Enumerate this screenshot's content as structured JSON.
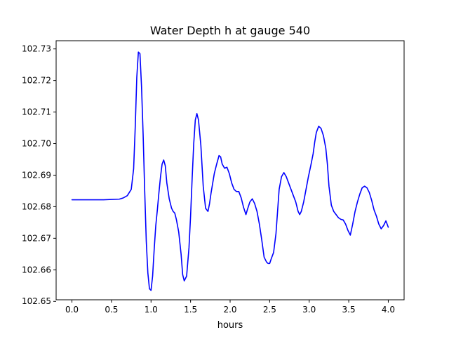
{
  "chart_data": {
    "type": "line",
    "title": "Water Depth h at gauge 540",
    "xlabel": "hours",
    "ylabel": "",
    "xlim": [
      -0.2,
      4.2
    ],
    "ylim": [
      102.6505,
      102.7326
    ],
    "grid": false,
    "x_ticks": [
      0.0,
      0.5,
      1.0,
      1.5,
      2.0,
      2.5,
      3.0,
      3.5,
      4.0
    ],
    "x_tick_labels": [
      "0.0",
      "0.5",
      "1.0",
      "1.5",
      "2.0",
      "2.5",
      "3.0",
      "3.5",
      "4.0"
    ],
    "y_ticks": [
      102.65,
      102.66,
      102.67,
      102.68,
      102.69,
      102.7,
      102.71,
      102.72,
      102.73
    ],
    "y_tick_labels": [
      "102.65",
      "102.66",
      "102.67",
      "102.68",
      "102.69",
      "102.70",
      "102.71",
      "102.72",
      "102.73"
    ],
    "series": [
      {
        "color": "#0000ff",
        "x": [
          0.0,
          0.1,
          0.2,
          0.3,
          0.4,
          0.5,
          0.6,
          0.65,
          0.7,
          0.75,
          0.78,
          0.8,
          0.82,
          0.84,
          0.86,
          0.88,
          0.9,
          0.92,
          0.94,
          0.96,
          0.98,
          1.0,
          1.02,
          1.04,
          1.06,
          1.08,
          1.1,
          1.12,
          1.14,
          1.16,
          1.18,
          1.2,
          1.23,
          1.26,
          1.28,
          1.3,
          1.32,
          1.35,
          1.38,
          1.4,
          1.42,
          1.45,
          1.48,
          1.5,
          1.52,
          1.54,
          1.56,
          1.58,
          1.6,
          1.63,
          1.66,
          1.69,
          1.72,
          1.74,
          1.76,
          1.78,
          1.8,
          1.83,
          1.86,
          1.88,
          1.9,
          1.93,
          1.96,
          1.99,
          2.02,
          2.05,
          2.08,
          2.11,
          2.14,
          2.17,
          2.2,
          2.22,
          2.25,
          2.28,
          2.31,
          2.34,
          2.37,
          2.4,
          2.43,
          2.46,
          2.48,
          2.5,
          2.52,
          2.55,
          2.58,
          2.6,
          2.62,
          2.65,
          2.68,
          2.71,
          2.74,
          2.77,
          2.8,
          2.83,
          2.86,
          2.88,
          2.9,
          2.93,
          2.96,
          2.99,
          3.02,
          3.05,
          3.07,
          3.09,
          3.12,
          3.15,
          3.18,
          3.21,
          3.23,
          3.25,
          3.28,
          3.31,
          3.34,
          3.37,
          3.4,
          3.43,
          3.46,
          3.49,
          3.52,
          3.55,
          3.58,
          3.61,
          3.64,
          3.67,
          3.7,
          3.73,
          3.76,
          3.79,
          3.82,
          3.85,
          3.88,
          3.91,
          3.94,
          3.97,
          4.0
        ],
        "y": [
          102.6822,
          102.6822,
          102.6822,
          102.6822,
          102.6822,
          102.6823,
          102.6824,
          102.6828,
          102.6835,
          102.6855,
          102.692,
          102.705,
          102.721,
          102.729,
          102.7285,
          102.718,
          102.703,
          102.685,
          102.669,
          102.659,
          102.654,
          102.6535,
          102.658,
          102.6665,
          102.674,
          102.679,
          102.6845,
          102.6895,
          102.6935,
          102.6948,
          102.693,
          102.6875,
          102.6825,
          102.6795,
          102.6785,
          102.678,
          102.676,
          102.672,
          102.665,
          102.6585,
          102.6565,
          102.658,
          102.667,
          102.677,
          102.689,
          102.7,
          102.7075,
          102.7095,
          102.7075,
          102.6995,
          102.6865,
          102.6795,
          102.6785,
          102.681,
          102.6845,
          102.6875,
          102.6905,
          102.6935,
          102.6962,
          102.6958,
          102.6935,
          102.6922,
          102.6925,
          102.6905,
          102.6875,
          102.6855,
          102.6848,
          102.6848,
          102.6828,
          102.6798,
          102.6775,
          102.6792,
          102.6815,
          102.6825,
          102.681,
          102.6785,
          102.6745,
          102.6695,
          102.664,
          102.6625,
          102.662,
          102.662,
          102.6635,
          102.6655,
          102.6715,
          102.6785,
          102.6855,
          102.6895,
          102.6908,
          102.6895,
          102.6875,
          102.6855,
          102.6835,
          102.6815,
          102.6785,
          102.6775,
          102.6785,
          102.6815,
          102.6855,
          102.6895,
          102.693,
          102.6968,
          102.7005,
          102.7035,
          102.7055,
          102.7048,
          102.7025,
          102.6985,
          102.6935,
          102.6865,
          102.6805,
          102.6785,
          102.6775,
          102.6765,
          102.676,
          102.6758,
          102.6745,
          102.6725,
          102.671,
          102.6745,
          102.6785,
          102.6815,
          102.684,
          102.686,
          102.6865,
          102.686,
          102.6845,
          102.682,
          102.679,
          102.677,
          102.6745,
          102.673,
          102.674,
          102.6755,
          102.6735
        ]
      }
    ]
  }
}
